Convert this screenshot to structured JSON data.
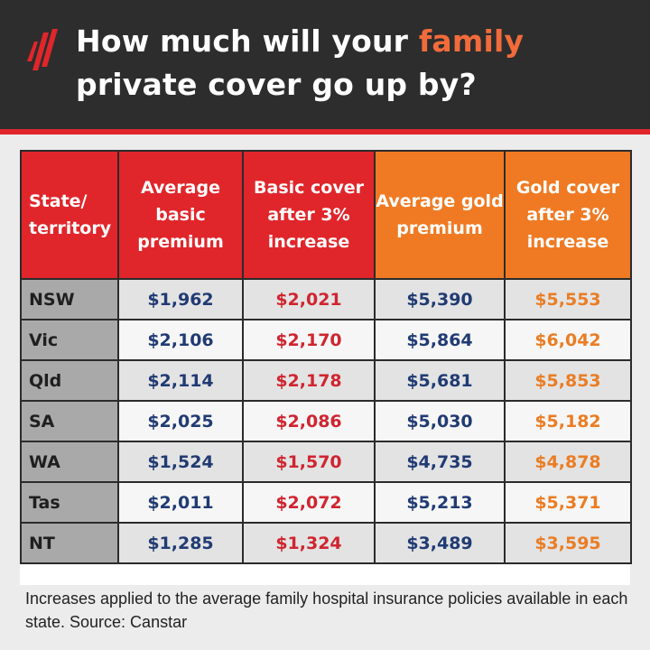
{
  "colors": {
    "header_bg": "#2d2d2d",
    "brand_red": "#e0262b",
    "brand_orange": "#ef7a23",
    "value_navy": "#213b73"
  },
  "header": {
    "logo_icon": "sbs-logo-icon",
    "title_part1": "How much will your ",
    "title_accent": "family",
    "title_part2": "private cover go up by?"
  },
  "table": {
    "headers": [
      "State/ territory",
      "Average basic premium",
      "Basic cover after 3% increase",
      "Average gold premium",
      "Gold cover after 3% increase"
    ],
    "rows": [
      {
        "state": "NSW",
        "basic": "$1,962",
        "basic_after": "$2,021",
        "gold": "$5,390",
        "gold_after": "$5,553"
      },
      {
        "state": "Vic",
        "basic": "$2,106",
        "basic_after": "$2,170",
        "gold": "$5,864",
        "gold_after": "$6,042"
      },
      {
        "state": "Qld",
        "basic": "$2,114",
        "basic_after": "$2,178",
        "gold": "$5,681",
        "gold_after": "$5,853"
      },
      {
        "state": "SA",
        "basic": "$2,025",
        "basic_after": "$2,086",
        "gold": "$5,030",
        "gold_after": "$5,182"
      },
      {
        "state": "WA",
        "basic": "$1,524",
        "basic_after": "$1,570",
        "gold": "$4,735",
        "gold_after": "$4,878"
      },
      {
        "state": "Tas",
        "basic": "$2,011",
        "basic_after": "$2,072",
        "gold": "$5,213",
        "gold_after": "$5,371"
      },
      {
        "state": "NT",
        "basic": "$1,285",
        "basic_after": "$1,324",
        "gold": "$3,489",
        "gold_after": "$3,595"
      }
    ]
  },
  "footnote": "Increases applied to the average family hospital insurance policies available in each state. Source: Canstar"
}
